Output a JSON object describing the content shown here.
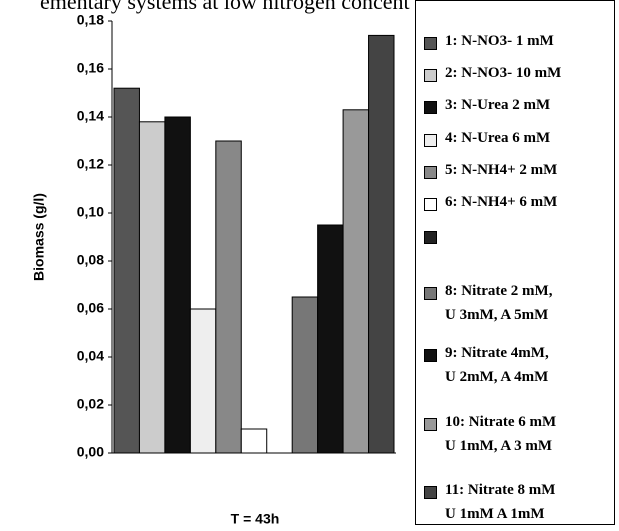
{
  "chart_data": {
    "type": "bar",
    "title": "ementary systems at low nitrogen concentration.",
    "xlabel": "T = 43h",
    "ylabel": "Biomass (g/l)",
    "categories": [
      null
    ],
    "ylim": [
      0,
      0.18
    ],
    "yticks": [
      {
        "value": 0,
        "label": "0,00"
      },
      {
        "value": 0.02,
        "label": "0,02"
      },
      {
        "value": 0.04,
        "label": "0,04"
      },
      {
        "value": 0.06,
        "label": "0,06"
      },
      {
        "value": 0.08,
        "label": "0,08"
      },
      {
        "value": 0.1,
        "label": "0,10"
      },
      {
        "value": 0.12,
        "label": "0,12"
      },
      {
        "value": 0.14,
        "label": "0,14"
      },
      {
        "value": 0.16,
        "label": "0,16"
      },
      {
        "value": 0.18,
        "label": "0,18"
      }
    ],
    "grid": false,
    "legend": "right",
    "series": [
      {
        "name": "1: N-NO3- 1 mM",
        "color": "#555555",
        "values": [
          0.152
        ]
      },
      {
        "name": "2: N-NO3- 10 mM",
        "color": "#cccccc",
        "values": [
          0.138
        ]
      },
      {
        "name": "3: N-Urea 2 mM",
        "color": "#111111",
        "values": [
          0.14
        ]
      },
      {
        "name": "4: N-Urea 6 mM",
        "color": "#eeeeee",
        "values": [
          0.06
        ]
      },
      {
        "name": "5: N-NH4+ 2 mM",
        "color": "#888888",
        "values": [
          0.13
        ]
      },
      {
        "name": "6: N-NH4+ 6 mM",
        "color": "#ffffff",
        "values": [
          0.01
        ]
      },
      {
        "name": null,
        "color": "#222222",
        "values": [
          null
        ]
      },
      {
        "name": "8:  Nitrate 2 mM,\nU 3mM, A 5mM",
        "color": "#777777",
        "values": [
          0.065
        ]
      },
      {
        "name": "9:   Nitrate 4mM,\nU 2mM, A 4mM",
        "color": "#111111",
        "values": [
          0.095
        ]
      },
      {
        "name": "10: Nitrate 6 mM\nU 1mM, A 3 mM",
        "color": "#999999",
        "values": [
          0.143
        ]
      },
      {
        "name": "11: Nitrate 8 mM\nU 1mM A 1mM",
        "color": "#444444",
        "values": [
          0.174
        ]
      }
    ]
  }
}
